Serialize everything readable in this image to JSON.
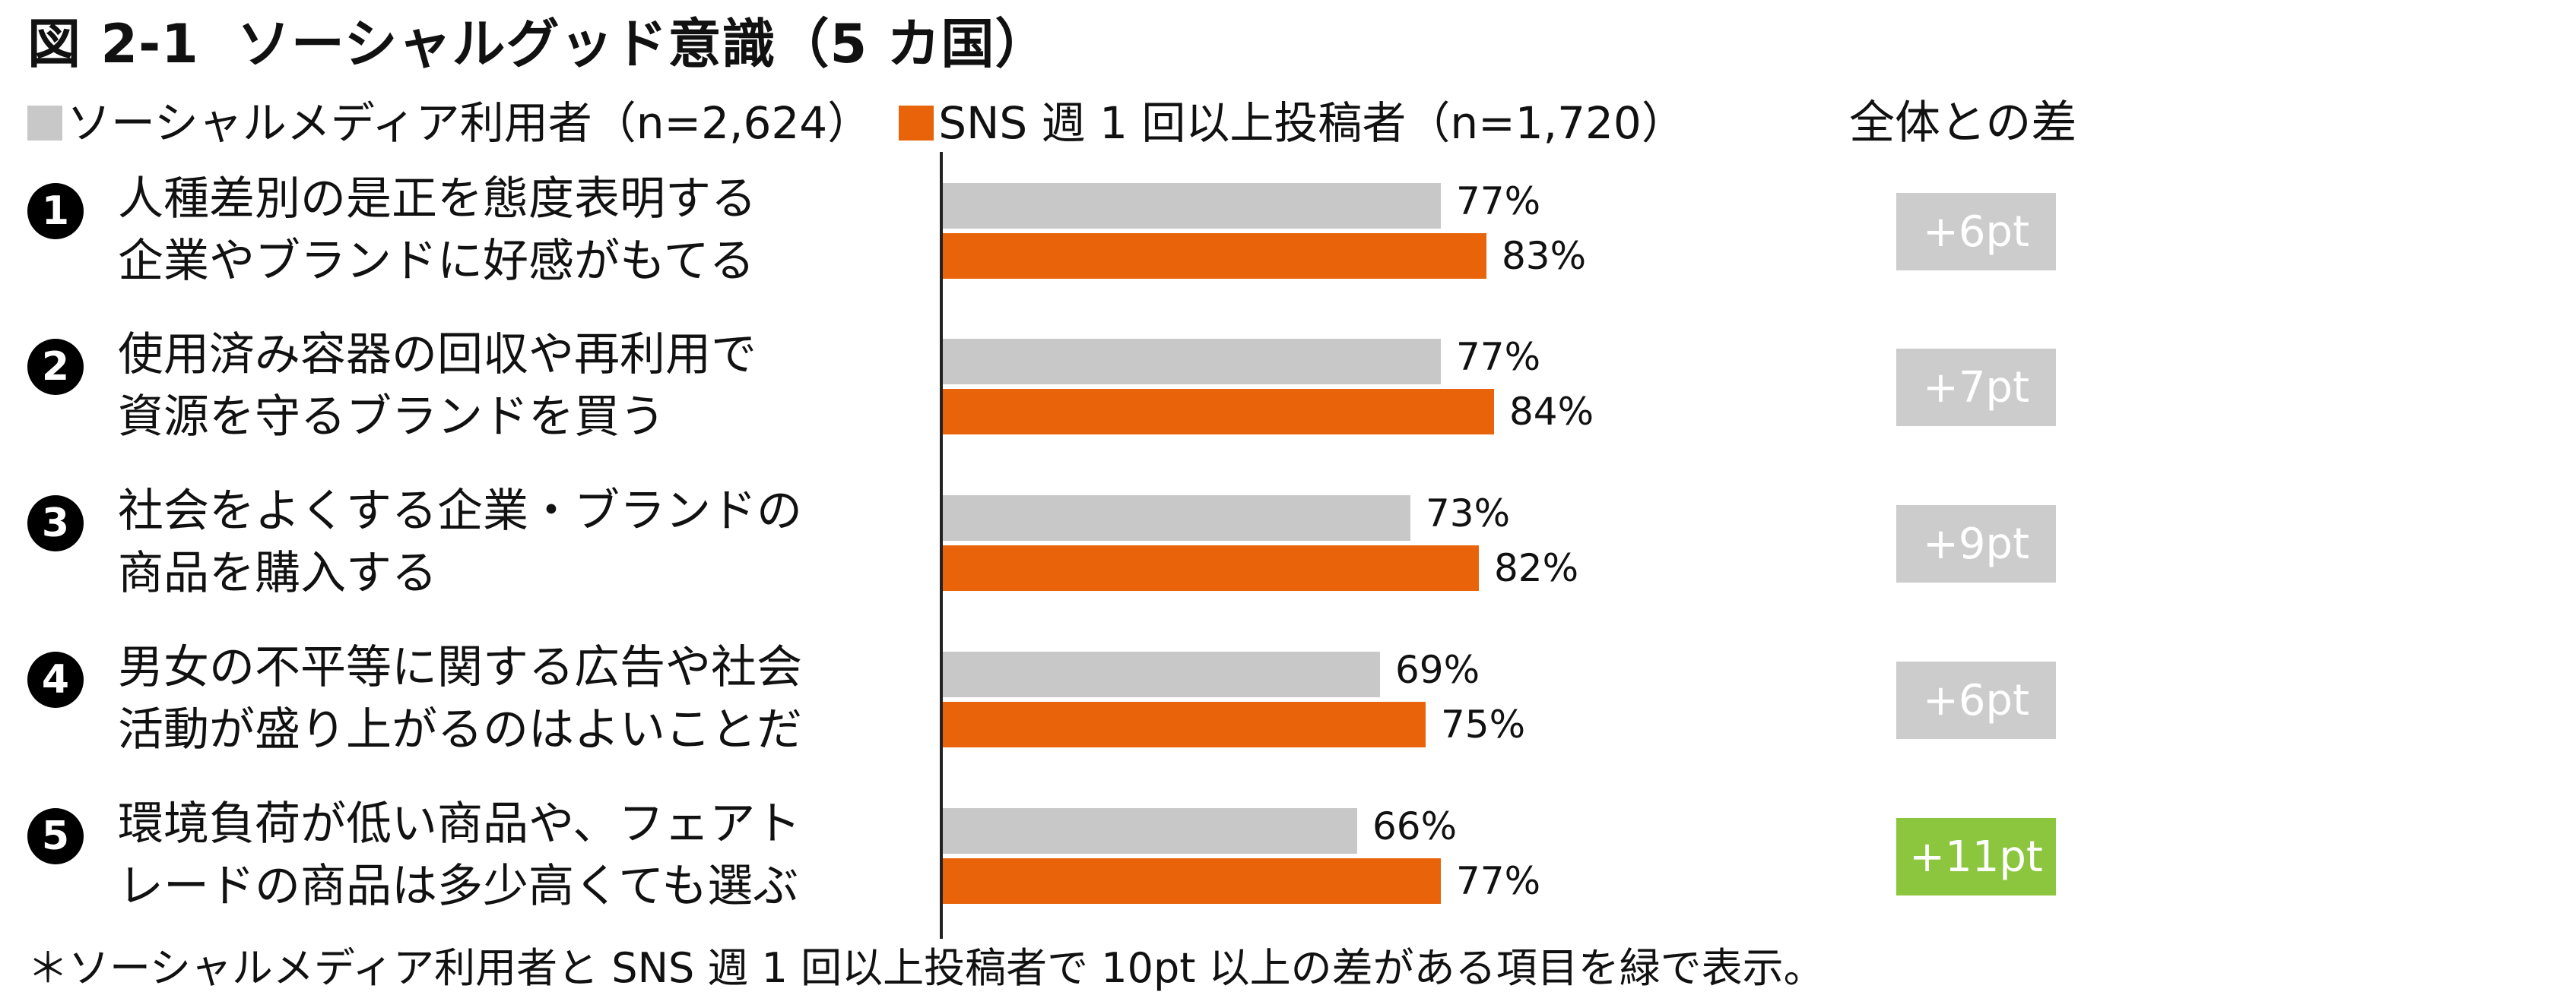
{
  "title": {
    "figure": "図 2-1",
    "text": "ソーシャルグッド意識（5 カ国）"
  },
  "legend": {
    "all_label": "ソーシャルメディア利用者（n=2,624）",
    "sns_label": "SNS 週 1 回以上投稿者（n=1,720）",
    "diff_header": "全体との差"
  },
  "colors": {
    "all": "#c8c8c8",
    "sns": "#e8630a",
    "diff_normal": "#cccccc",
    "diff_highlight": "#8cc63f"
  },
  "chart_data": {
    "type": "bar",
    "orientation": "horizontal",
    "categories": [
      "人種差別の是正を態度表明する企業やブランドに好感がもてる",
      "使用済み容器の回収や再利用で資源を守るブランドを買う",
      "社会をよくする企業・ブランドの商品を購入する",
      "男女の不平等に関する広告や社会活動が盛り上がるのはよいことだ",
      "環境負荷が低い商品や、フェアトレードの商品は多少高くても選ぶ"
    ],
    "series": [
      {
        "name": "ソーシャルメディア利用者（n=2,624）",
        "values": [
          77,
          77,
          73,
          69,
          66
        ]
      },
      {
        "name": "SNS 週 1 回以上投稿者（n=1,720）",
        "values": [
          83,
          84,
          82,
          75,
          77
        ]
      }
    ],
    "differences": [
      6,
      7,
      9,
      6,
      11
    ],
    "unit": "%",
    "xlim": [
      0,
      100
    ]
  },
  "rows": [
    {
      "num": "1",
      "line1": "人種差別の是正を態度表明する",
      "line2": "企業やブランドに好感がもてる",
      "all_label": "77%",
      "sns_label": "83%",
      "diff_label": "+6pt",
      "highlight": false
    },
    {
      "num": "2",
      "line1": "使用済み容器の回収や再利用で",
      "line2": "資源を守るブランドを買う",
      "all_label": "77%",
      "sns_label": "84%",
      "diff_label": "+7pt",
      "highlight": false
    },
    {
      "num": "3",
      "line1": "社会をよくする企業・ブランドの",
      "line2": "商品を購入する",
      "all_label": "73%",
      "sns_label": "82%",
      "diff_label": "+9pt",
      "highlight": false
    },
    {
      "num": "4",
      "line1": "男女の不平等に関する広告や社会",
      "line2": "活動が盛り上がるのはよいことだ",
      "all_label": "69%",
      "sns_label": "75%",
      "diff_label": "+6pt",
      "highlight": false
    },
    {
      "num": "5",
      "line1": "環境負荷が低い商品や、フェアト",
      "line2": "レードの商品は多少高くても選ぶ",
      "all_label": "66%",
      "sns_label": "77%",
      "diff_label": "+11pt",
      "highlight": true
    }
  ],
  "footnote": "＊ソーシャルメディア利用者と SNS 週 1 回以上投稿者で 10pt 以上の差がある項目を緑で表示。"
}
